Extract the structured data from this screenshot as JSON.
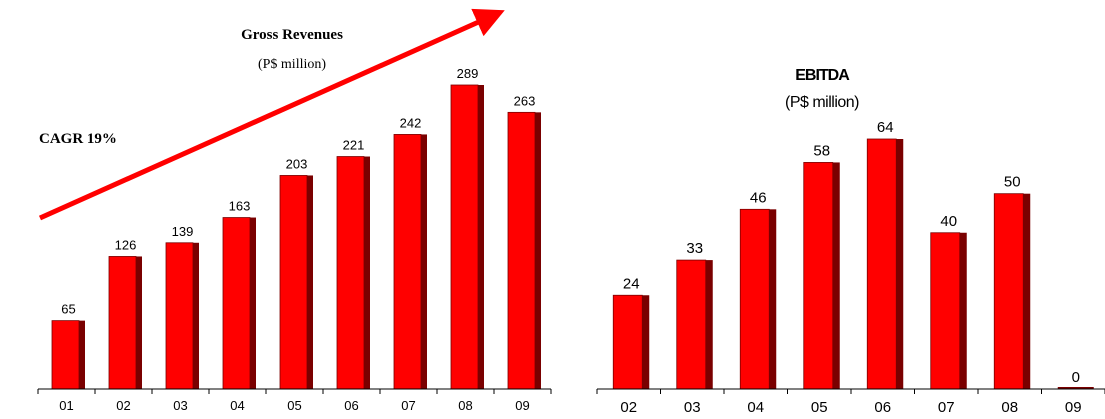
{
  "charts": {
    "revenues": {
      "title": "Gross Revenues",
      "subtitle": "(P$ million)",
      "annotation": "CAGR 19%"
    },
    "ebitda": {
      "title": "EBITDA",
      "subtitle": "(P$ million)"
    }
  },
  "colors": {
    "bar_front": "#ff0000",
    "bar_side": "#7a0000",
    "arrow": "#ff0000",
    "axis": "#000000"
  },
  "chart_data": [
    {
      "type": "bar",
      "title": "Gross Revenues",
      "subtitle": "(P$ million)",
      "annotation": "CAGR 19%",
      "categories": [
        "01",
        "02",
        "03",
        "04",
        "05",
        "06",
        "07",
        "08",
        "09"
      ],
      "values": [
        65,
        126,
        139,
        163,
        203,
        221,
        242,
        289,
        263
      ],
      "data_labels": [
        "65",
        "126",
        "139",
        "163",
        "203",
        "221",
        "242",
        "289",
        "263"
      ],
      "ylim": [
        0,
        289
      ],
      "grid": false,
      "legend": "none"
    },
    {
      "type": "bar",
      "title": "EBITDA",
      "subtitle": "(P$ million)",
      "categories": [
        "02",
        "03",
        "04",
        "05",
        "06",
        "07",
        "08",
        "09"
      ],
      "values": [
        24,
        33,
        46,
        58,
        64,
        40,
        50,
        0
      ],
      "data_labels": [
        "24",
        "33",
        "46",
        "58",
        "64",
        "40",
        "50",
        "0"
      ],
      "ylim": [
        0,
        64
      ],
      "grid": false,
      "legend": "none"
    }
  ]
}
